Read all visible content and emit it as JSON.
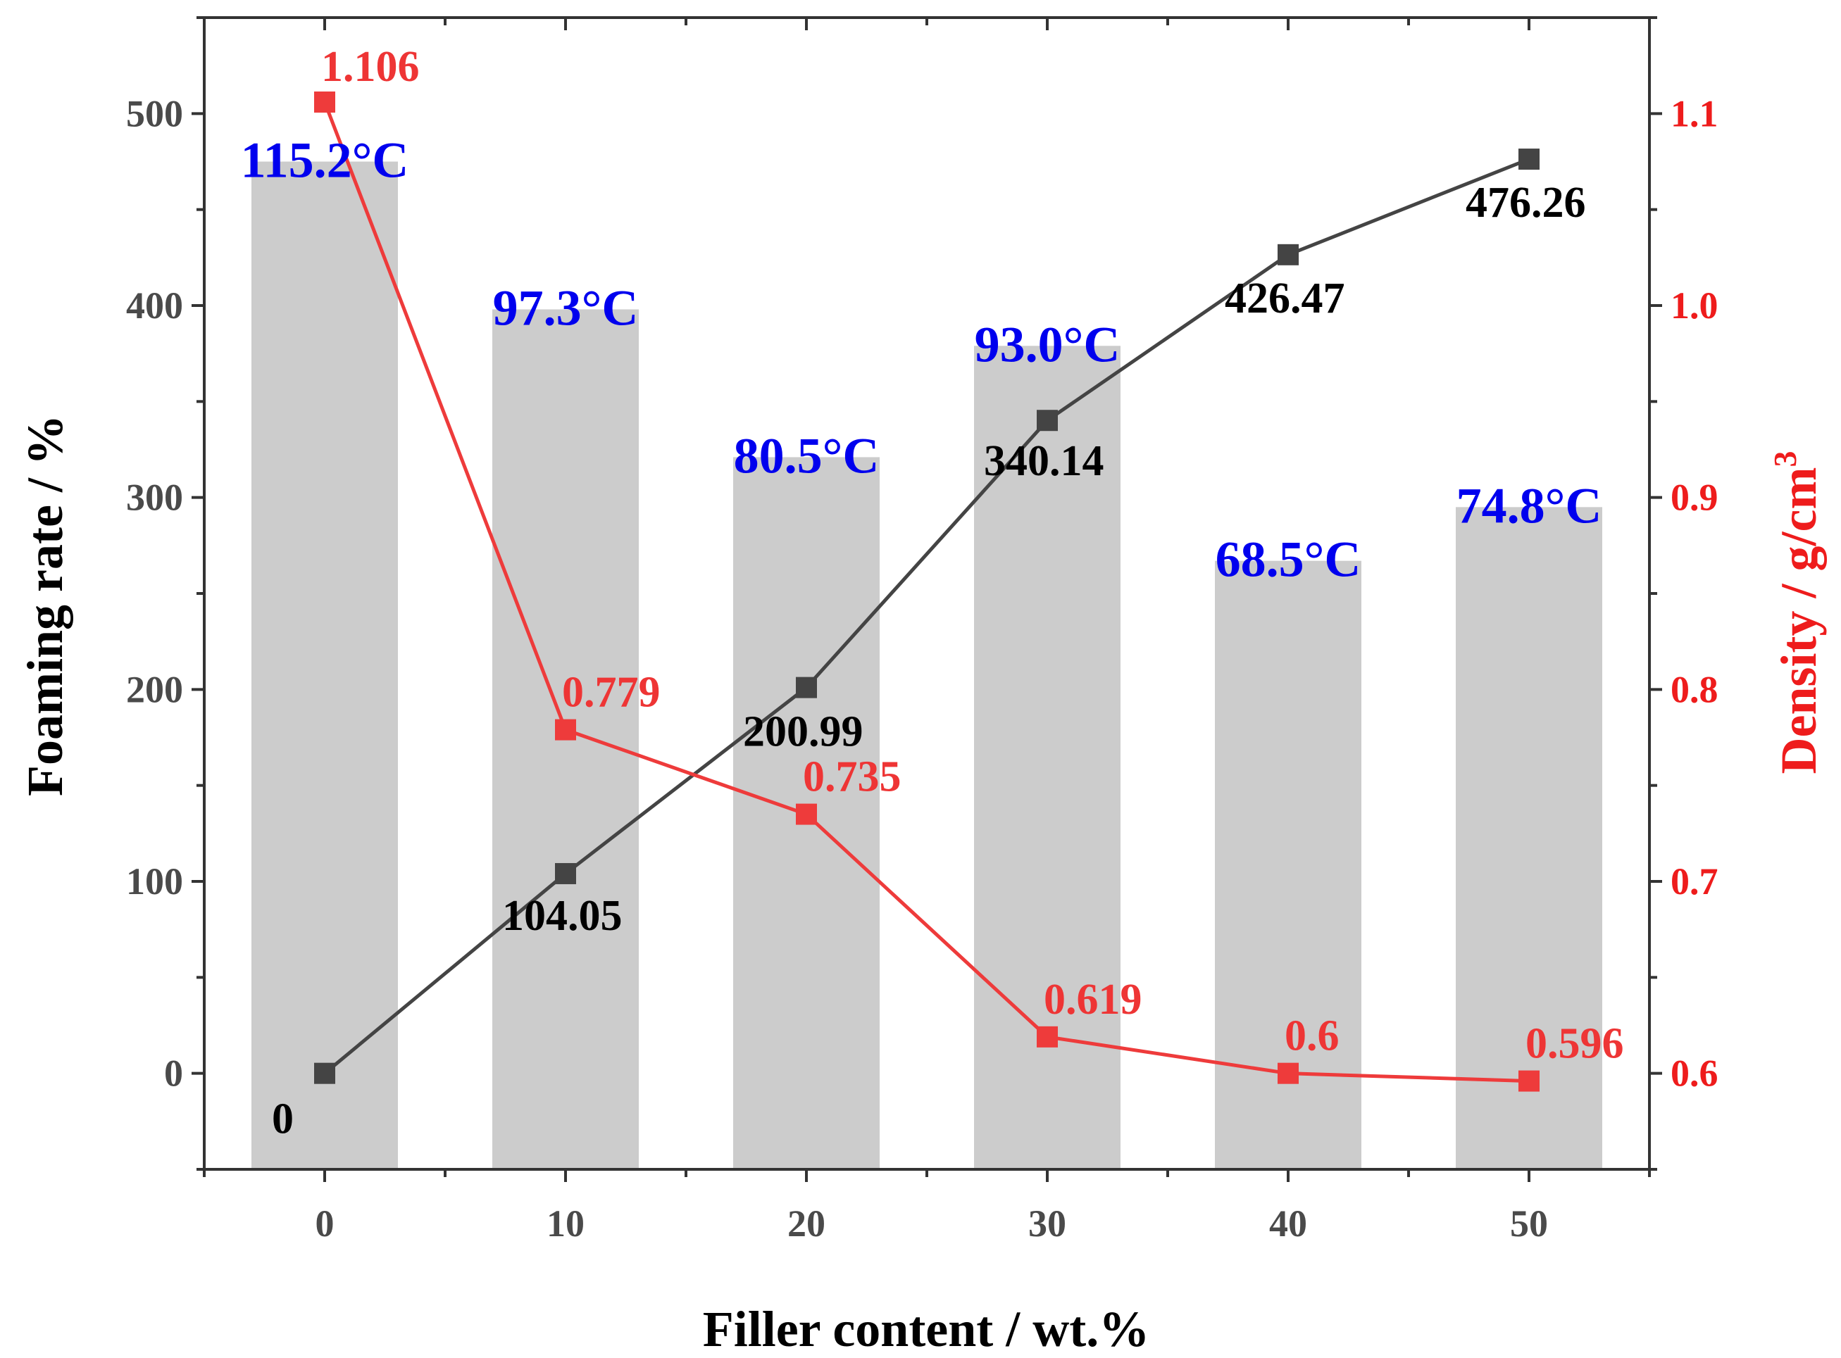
{
  "chart_data": {
    "type": "bar+line",
    "xlabel": "Filler content / wt.%",
    "ylabel_left": "Foaming rate / %",
    "ylabel_right_text": "Density / g/cm",
    "ylabel_right_sup": "3",
    "x": [
      0,
      10,
      20,
      30,
      40,
      50
    ],
    "xticks": [
      "0",
      "10",
      "20",
      "30",
      "40",
      "50"
    ],
    "xlim": [
      -5,
      55
    ],
    "ylim_left": [
      -50,
      550
    ],
    "ylim_right": [
      0.55,
      1.15
    ],
    "yticks_left": [
      "0",
      "100",
      "200",
      "300",
      "400",
      "500"
    ],
    "yticks_right": [
      "0.6",
      "0.7",
      "0.8",
      "0.9",
      "1.0",
      "1.1"
    ],
    "bars": {
      "name": "Temperature",
      "values_left_axis": [
        475,
        398,
        321,
        379,
        267,
        295
      ],
      "labels": [
        "115.2°C",
        "97.3°C",
        "80.5°C",
        "93.0°C",
        "68.5°C",
        "74.8°C"
      ],
      "color": "#cccccc"
    },
    "series": [
      {
        "name": "Foaming rate",
        "axis": "left",
        "values": [
          0,
          104.05,
          200.99,
          340.14,
          426.47,
          476.26
        ],
        "labels": [
          "0",
          "104.05",
          "200.99",
          "340.14",
          "426.47",
          "476.26"
        ],
        "color": "#444444"
      },
      {
        "name": "Density",
        "axis": "right",
        "values": [
          1.106,
          0.779,
          0.735,
          0.619,
          0.6,
          0.596
        ],
        "labels": [
          "1.106",
          "0.779",
          "0.735",
          "0.619",
          "0.6",
          "0.596"
        ],
        "color": "#ee3b3b"
      }
    ]
  }
}
